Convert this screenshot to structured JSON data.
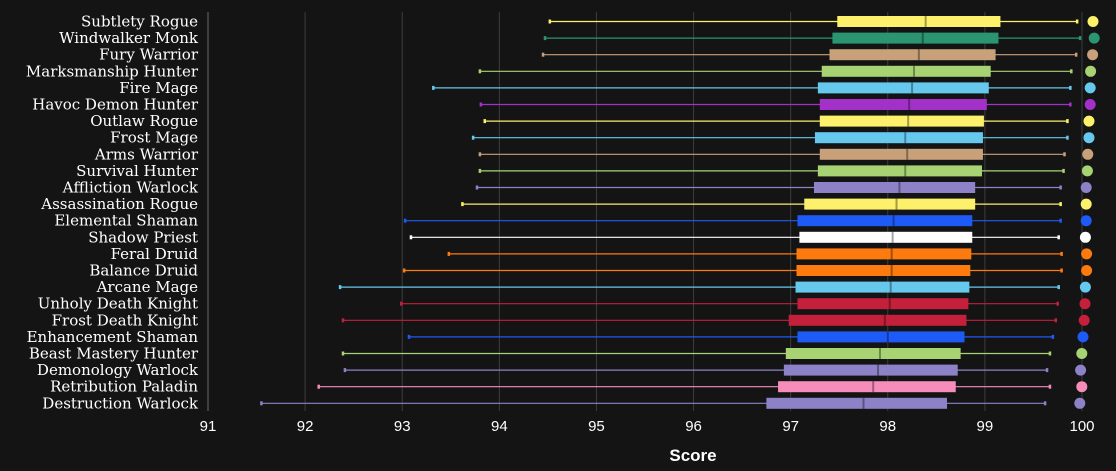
{
  "chart_data": {
    "type": "boxplot",
    "title": "",
    "xlabel": "Score",
    "ylabel": "",
    "xlim": [
      91,
      100
    ],
    "xticks": [
      "91",
      "92",
      "93",
      "94",
      "95",
      "96",
      "97",
      "98",
      "99",
      "100"
    ],
    "grid": "vertical",
    "orientation": "horizontal",
    "series": [
      {
        "name": "Subtlety Rogue",
        "color": "#fdf06a",
        "min": 94.52,
        "q1": 97.48,
        "median": 98.39,
        "q3": 99.16,
        "max": 99.95,
        "marker": 99.95
      },
      {
        "name": "Windwalker Monk",
        "color": "#2a9570",
        "min": 94.47,
        "q1": 97.43,
        "median": 98.36,
        "q3": 99.14,
        "max": 99.98,
        "marker": 99.98
      },
      {
        "name": "Fury Warrior",
        "color": "#c8a07a",
        "min": 94.45,
        "q1": 97.4,
        "median": 98.32,
        "q3": 99.11,
        "max": 99.94,
        "marker": 99.94
      },
      {
        "name": "Marksmanship Hunter",
        "color": "#a8d373",
        "min": 93.8,
        "q1": 97.32,
        "median": 98.27,
        "q3": 99.06,
        "max": 99.89,
        "marker": 99.89
      },
      {
        "name": "Fire Mage",
        "color": "#67c8ee",
        "min": 93.32,
        "q1": 97.28,
        "median": 98.25,
        "q3": 99.04,
        "max": 99.88,
        "marker": 99.88
      },
      {
        "name": "Havoc Demon Hunter",
        "color": "#a330c9",
        "min": 93.81,
        "q1": 97.3,
        "median": 98.22,
        "q3": 99.02,
        "max": 99.88,
        "marker": 99.88
      },
      {
        "name": "Outlaw Rogue",
        "color": "#fdf06a",
        "min": 93.85,
        "q1": 97.3,
        "median": 98.21,
        "q3": 98.99,
        "max": 99.85,
        "marker": 99.85
      },
      {
        "name": "Frost Mage",
        "color": "#67c8ee",
        "min": 93.73,
        "q1": 97.25,
        "median": 98.18,
        "q3": 98.98,
        "max": 99.85,
        "marker": 99.85
      },
      {
        "name": "Arms Warrior",
        "color": "#c8a07a",
        "min": 93.8,
        "q1": 97.3,
        "median": 98.2,
        "q3": 98.98,
        "max": 99.82,
        "marker": 99.82
      },
      {
        "name": "Survival Hunter",
        "color": "#a8d373",
        "min": 93.8,
        "q1": 97.28,
        "median": 98.18,
        "q3": 98.97,
        "max": 99.81,
        "marker": 99.81
      },
      {
        "name": "Affliction Warlock",
        "color": "#8d82c7",
        "min": 93.77,
        "q1": 97.24,
        "median": 98.12,
        "q3": 98.9,
        "max": 99.78,
        "marker": 99.78
      },
      {
        "name": "Assassination Rogue",
        "color": "#fdf06a",
        "min": 93.62,
        "q1": 97.14,
        "median": 98.09,
        "q3": 98.9,
        "max": 99.78,
        "marker": 99.78
      },
      {
        "name": "Elemental Shaman",
        "color": "#1e5af5",
        "min": 93.03,
        "q1": 97.07,
        "median": 98.06,
        "q3": 98.87,
        "max": 99.78,
        "marker": 99.78
      },
      {
        "name": "Shadow Priest",
        "color": "#ffffff",
        "min": 93.09,
        "q1": 97.09,
        "median": 98.05,
        "q3": 98.87,
        "max": 99.76,
        "marker": 99.76
      },
      {
        "name": "Feral Druid",
        "color": "#fc7a0e",
        "min": 93.48,
        "q1": 97.06,
        "median": 98.04,
        "q3": 98.86,
        "max": 99.79,
        "marker": 99.79
      },
      {
        "name": "Balance Druid",
        "color": "#fc7a0e",
        "min": 93.02,
        "q1": 97.06,
        "median": 98.04,
        "q3": 98.85,
        "max": 99.79,
        "marker": 99.79
      },
      {
        "name": "Arcane Mage",
        "color": "#67c8ee",
        "min": 92.36,
        "q1": 97.05,
        "median": 98.03,
        "q3": 98.84,
        "max": 99.76,
        "marker": 99.76
      },
      {
        "name": "Unholy Death Knight",
        "color": "#c41f3b",
        "min": 92.99,
        "q1": 97.07,
        "median": 98.02,
        "q3": 98.83,
        "max": 99.75,
        "marker": 99.75
      },
      {
        "name": "Frost Death Knight",
        "color": "#c41f3b",
        "min": 92.39,
        "q1": 96.98,
        "median": 97.97,
        "q3": 98.81,
        "max": 99.73,
        "marker": 99.73
      },
      {
        "name": "Enhancement Shaman",
        "color": "#1e5af5",
        "min": 93.07,
        "q1": 97.07,
        "median": 98.0,
        "q3": 98.79,
        "max": 99.7,
        "marker": 99.7
      },
      {
        "name": "Beast Mastery Hunter",
        "color": "#a8d373",
        "min": 92.39,
        "q1": 96.95,
        "median": 97.92,
        "q3": 98.75,
        "max": 99.67,
        "marker": 99.67
      },
      {
        "name": "Demonology Warlock",
        "color": "#8d82c7",
        "min": 92.41,
        "q1": 96.93,
        "median": 97.9,
        "q3": 98.72,
        "max": 99.64,
        "marker": 99.64
      },
      {
        "name": "Retribution Paladin",
        "color": "#f58cba",
        "min": 92.14,
        "q1": 96.87,
        "median": 97.85,
        "q3": 98.7,
        "max": 99.67,
        "marker": 99.67
      },
      {
        "name": "Destruction Warlock",
        "color": "#8d82c7",
        "min": 91.55,
        "q1": 96.75,
        "median": 97.75,
        "q3": 98.61,
        "max": 99.62,
        "marker": 99.62
      }
    ]
  }
}
